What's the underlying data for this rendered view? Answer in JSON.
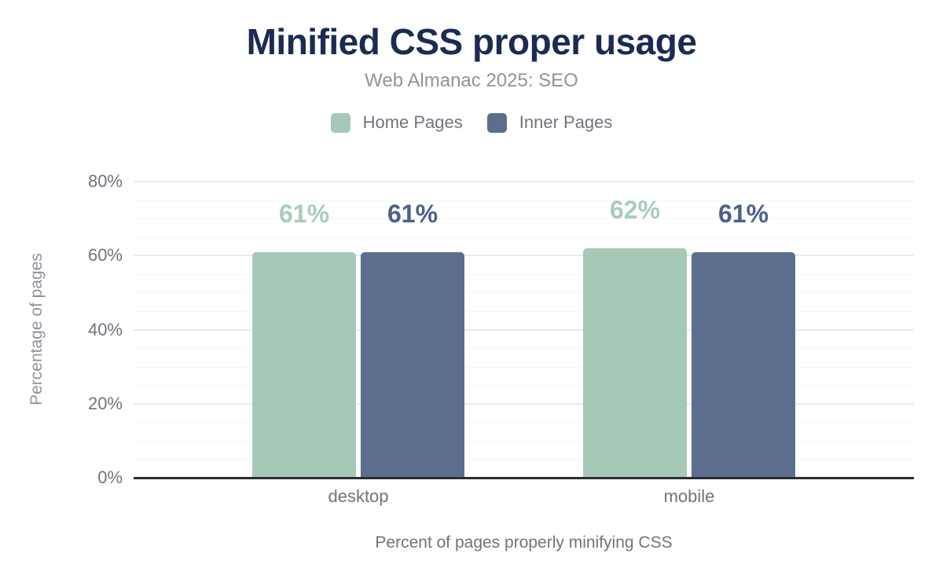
{
  "title": "Minified CSS proper usage",
  "subtitle": "Web Almanac 2025: SEO",
  "colors": {
    "title": "#1b2b52",
    "subtitle": "#8e949d",
    "legend_text": "#6f757e",
    "axis_text": "#6e747c",
    "y_axis_title_text": "#8d939b",
    "axis_line": "#2b2e34",
    "home_pages": "#a6c8b7",
    "inner_pages": "#5c6e8d",
    "home_pages_label": "#a8ccba",
    "inner_pages_label": "#4d608a"
  },
  "legend": [
    {
      "label": "Home Pages",
      "color": "#a6c8b7"
    },
    {
      "label": "Inner Pages",
      "color": "#5c6e8d"
    }
  ],
  "y_axis": {
    "ticks": [
      "0%",
      "20%",
      "40%",
      "60%",
      "80%"
    ]
  },
  "chart_data": {
    "type": "bar",
    "title": "Minified CSS proper usage",
    "subtitle": "Web Almanac 2025: SEO",
    "categories": [
      "desktop",
      "mobile"
    ],
    "series": [
      {
        "name": "Home Pages",
        "color": "#a6c8b7",
        "label_color": "#a8ccba",
        "values": [
          61,
          62
        ]
      },
      {
        "name": "Inner Pages",
        "color": "#5c6e8d",
        "label_color": "#4d608a",
        "values": [
          61,
          61
        ]
      }
    ],
    "value_suffix": "%",
    "xlabel": "Percent of pages properly minifying CSS",
    "ylabel": "Percentage of pages",
    "ylim": [
      0,
      80
    ],
    "ytick_step": 20,
    "minor_grid_step": 5,
    "grid": true,
    "legend_position": "top"
  }
}
